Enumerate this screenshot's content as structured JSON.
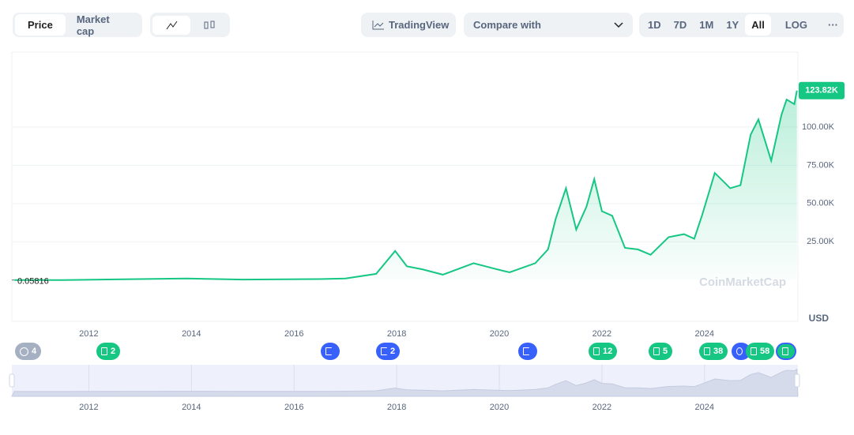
{
  "toolbar": {
    "view_tabs": [
      "Price",
      "Market cap"
    ],
    "tradingview": "TradingView",
    "compare": "Compare with",
    "ranges": [
      "1D",
      "7D",
      "1M",
      "1Y",
      "All"
    ],
    "log": "LOG",
    "more": "···"
  },
  "chart_data": {
    "type": "line",
    "watermark": "CoinMarketCap",
    "currency": "USD",
    "x": [
      2010.55,
      2011.5,
      2013.9,
      2015,
      2016.5,
      2017,
      2017.6,
      2017.97,
      2018.2,
      2018.5,
      2018.9,
      2019.5,
      2019.9,
      2020.2,
      2020.7,
      2020.95,
      2021.1,
      2021.3,
      2021.5,
      2021.7,
      2021.85,
      2022,
      2022.2,
      2022.45,
      2022.7,
      2022.95,
      2023.3,
      2023.6,
      2023.8,
      2023.95,
      2024.2,
      2024.5,
      2024.7,
      2024.9,
      2025.05,
      2025.3,
      2025.5,
      2025.6,
      2025.75,
      2025.8
    ],
    "series": [
      {
        "name": "Price",
        "color": "#16c784",
        "values": [
          0.05816,
          10,
          1000,
          300,
          600,
          1000,
          4000,
          19000,
          9000,
          7000,
          3500,
          11000,
          7500,
          5000,
          11000,
          20000,
          40000,
          60000,
          33000,
          48000,
          66000,
          45000,
          42000,
          21000,
          20000,
          16500,
          28000,
          30000,
          27000,
          42000,
          70000,
          60000,
          62000,
          95000,
          105000,
          78000,
          108000,
          118000,
          115000,
          123820
        ],
        "value_labels": [
          null,
          null,
          null,
          null,
          null,
          null,
          null,
          null,
          null,
          null,
          null,
          null,
          null,
          null,
          null,
          null,
          null,
          null,
          null,
          null,
          null,
          null,
          null,
          null,
          null,
          null,
          null,
          null,
          null,
          null,
          null,
          null,
          null,
          null,
          null,
          null,
          null,
          null,
          null,
          "123.82K"
        ]
      }
    ],
    "xlim": [
      2010.5,
      2025.82
    ],
    "xticks": [
      2012,
      2014,
      2016,
      2018,
      2020,
      2022,
      2024
    ],
    "ylim": [
      -27000,
      149000
    ],
    "yticks": [
      {
        "value": 25000,
        "label": "25.00K"
      },
      {
        "value": 50000,
        "label": "50.00K"
      },
      {
        "value": 75000,
        "label": "75.00K"
      },
      {
        "value": 100000,
        "label": "100.00K"
      }
    ],
    "grid": true
  },
  "events": [
    {
      "label": "4"
    },
    {
      "label": "2"
    },
    {
      "label": "2"
    },
    {
      "label": "12"
    },
    {
      "label": "5"
    },
    {
      "label": "38"
    },
    {
      "label": "58"
    }
  ]
}
